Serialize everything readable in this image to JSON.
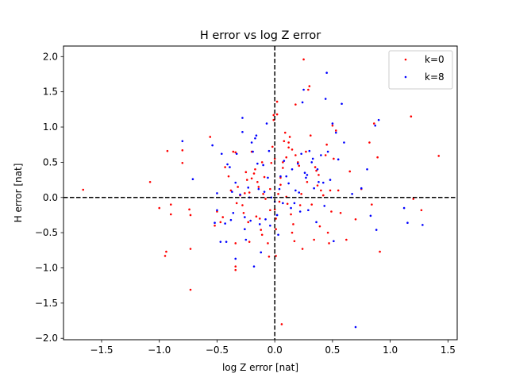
{
  "chart_data": {
    "type": "scatter",
    "title": "H error vs log Z error",
    "xlabel": "log Z error [nat]",
    "ylabel": "H error [nat]",
    "xlim": [
      -1.83,
      1.58
    ],
    "ylim": [
      -2.02,
      2.15
    ],
    "xticks": [
      -1.5,
      -1.0,
      -0.5,
      0.0,
      0.5,
      1.0,
      1.5
    ],
    "xtick_labels": [
      "−1.5",
      "−1.0",
      "−0.5",
      "0.0",
      "0.5",
      "1.0",
      "1.5"
    ],
    "yticks": [
      -2.0,
      -1.5,
      -1.0,
      -0.5,
      0.0,
      0.5,
      1.0,
      1.5,
      2.0
    ],
    "ytick_labels": [
      "−2.0",
      "−1.5",
      "−1.0",
      "−0.5",
      "0.0",
      "0.5",
      "1.0",
      "1.5",
      "2.0"
    ],
    "grid": false,
    "legend_position": "top-right",
    "reference_lines": [
      {
        "orientation": "horizontal",
        "value": 0.0,
        "style": "dashed",
        "color": "#000000"
      },
      {
        "orientation": "vertical",
        "value": 0.0,
        "style": "dashed",
        "color": "#000000"
      }
    ],
    "series": [
      {
        "name": "k=0",
        "color": "#ff0000",
        "points": [
          [
            -1.66,
            0.11
          ],
          [
            -1.08,
            0.22
          ],
          [
            -1.0,
            -0.15
          ],
          [
            -0.93,
            0.66
          ],
          [
            -0.95,
            -0.83
          ],
          [
            -0.94,
            -0.77
          ],
          [
            -0.9,
            -0.1
          ],
          [
            -0.9,
            -0.24
          ],
          [
            -0.8,
            0.49
          ],
          [
            -0.8,
            0.67
          ],
          [
            -0.74,
            -0.17
          ],
          [
            -0.73,
            -0.25
          ],
          [
            -0.73,
            -0.73
          ],
          [
            -0.73,
            -1.31
          ],
          [
            -0.56,
            0.86
          ],
          [
            -0.52,
            -0.4
          ],
          [
            -0.5,
            -0.2
          ],
          [
            -0.47,
            -0.35
          ],
          [
            -0.45,
            -0.28
          ],
          [
            -0.43,
            0.43
          ],
          [
            -0.4,
            0.3
          ],
          [
            -0.38,
            0.1
          ],
          [
            -0.36,
            0.65
          ],
          [
            -0.34,
            0.64
          ],
          [
            -0.34,
            -0.65
          ],
          [
            -0.34,
            -0.98
          ],
          [
            -0.34,
            -1.03
          ],
          [
            -0.33,
            -0.08
          ],
          [
            -0.32,
            0.15
          ],
          [
            -0.3,
            0.03
          ],
          [
            -0.28,
            -0.11
          ],
          [
            -0.27,
            -0.22
          ],
          [
            -0.26,
            0.06
          ],
          [
            -0.25,
            0.36
          ],
          [
            -0.24,
            0.25
          ],
          [
            -0.23,
            -0.35
          ],
          [
            -0.22,
            -0.63
          ],
          [
            -0.22,
            0.07
          ],
          [
            -0.2,
            0.65
          ],
          [
            -0.2,
            0.27
          ],
          [
            -0.18,
            0.34
          ],
          [
            -0.17,
            0.4
          ],
          [
            -0.16,
            -0.27
          ],
          [
            -0.15,
            0.22
          ],
          [
            -0.14,
            0.15
          ],
          [
            -0.13,
            -0.3
          ],
          [
            -0.12,
            -0.46
          ],
          [
            -0.11,
            0.5
          ],
          [
            -0.11,
            -0.53
          ],
          [
            -0.1,
            0.05
          ],
          [
            -0.09,
            0.29
          ],
          [
            -0.08,
            -0.02
          ],
          [
            -0.06,
            -0.65
          ],
          [
            -0.05,
            -0.84
          ],
          [
            -0.04,
            -0.18
          ],
          [
            -0.04,
            0.12
          ],
          [
            -0.03,
            0.49
          ],
          [
            -0.02,
            0.72
          ],
          [
            -0.01,
            1.17
          ],
          [
            -0.01,
            1.1
          ],
          [
            0.0,
            0.55
          ],
          [
            0.0,
            -0.17
          ],
          [
            0.01,
            -0.3
          ],
          [
            0.01,
            -0.45
          ],
          [
            0.01,
            -0.83
          ],
          [
            0.02,
            1.36
          ],
          [
            0.02,
            1.18
          ],
          [
            0.03,
            0.05
          ],
          [
            0.04,
            -0.06
          ],
          [
            0.05,
            0.28
          ],
          [
            0.05,
            0.18
          ],
          [
            0.06,
            -1.8
          ],
          [
            0.07,
            0.5
          ],
          [
            0.07,
            0.42
          ],
          [
            0.08,
            0.8
          ],
          [
            0.09,
            0.92
          ],
          [
            0.1,
            0.57
          ],
          [
            0.1,
            0.01
          ],
          [
            0.11,
            -0.09
          ],
          [
            0.12,
            0.78
          ],
          [
            0.12,
            0.71
          ],
          [
            0.13,
            0.86
          ],
          [
            0.14,
            -0.24
          ],
          [
            0.15,
            0.68
          ],
          [
            0.15,
            -0.5
          ],
          [
            0.16,
            -0.38
          ],
          [
            0.17,
            -0.62
          ],
          [
            0.18,
            1.32
          ],
          [
            0.18,
            0.6
          ],
          [
            0.2,
            0.5
          ],
          [
            0.21,
            0.45
          ],
          [
            0.22,
            -0.11
          ],
          [
            0.23,
            0.05
          ],
          [
            0.24,
            -0.73
          ],
          [
            0.25,
            1.96
          ],
          [
            0.27,
            0.65
          ],
          [
            0.28,
            0.22
          ],
          [
            0.29,
            1.53
          ],
          [
            0.3,
            1.58
          ],
          [
            0.31,
            0.88
          ],
          [
            0.32,
            -0.1
          ],
          [
            0.34,
            -0.6
          ],
          [
            0.35,
            0.43
          ],
          [
            0.36,
            0.38
          ],
          [
            0.37,
            0.17
          ],
          [
            0.38,
            0.32
          ],
          [
            0.39,
            -0.41
          ],
          [
            0.4,
            0.1
          ],
          [
            0.42,
            0.03
          ],
          [
            0.44,
            0.6
          ],
          [
            0.45,
            0.75
          ],
          [
            0.46,
            -0.5
          ],
          [
            0.47,
            -0.65
          ],
          [
            0.48,
            0.1
          ],
          [
            0.49,
            -0.2
          ],
          [
            0.5,
            1.02
          ],
          [
            0.51,
            0.55
          ],
          [
            0.53,
            0.95
          ],
          [
            0.55,
            0.1
          ],
          [
            0.57,
            -0.22
          ],
          [
            0.62,
            -0.6
          ],
          [
            0.65,
            0.37
          ],
          [
            0.7,
            -0.31
          ],
          [
            0.75,
            0.12
          ],
          [
            0.82,
            0.78
          ],
          [
            0.84,
            -0.1
          ],
          [
            0.86,
            1.05
          ],
          [
            0.89,
            0.57
          ],
          [
            0.91,
            -0.77
          ],
          [
            1.18,
            1.15
          ],
          [
            1.2,
            -0.02
          ],
          [
            1.27,
            -0.18
          ],
          [
            1.42,
            0.59
          ]
        ]
      },
      {
        "name": "k=8",
        "color": "#0000ff",
        "points": [
          [
            -0.8,
            0.8
          ],
          [
            -0.71,
            0.26
          ],
          [
            -0.54,
            0.74
          ],
          [
            -0.52,
            -0.36
          ],
          [
            -0.5,
            -0.18
          ],
          [
            -0.5,
            0.06
          ],
          [
            -0.47,
            -0.63
          ],
          [
            -0.46,
            0.62
          ],
          [
            -0.43,
            -0.37
          ],
          [
            -0.42,
            -0.63
          ],
          [
            -0.41,
            0.47
          ],
          [
            -0.39,
            0.43
          ],
          [
            -0.38,
            -0.32
          ],
          [
            -0.37,
            0.08
          ],
          [
            -0.36,
            -0.22
          ],
          [
            -0.34,
            0.21
          ],
          [
            -0.34,
            -0.87
          ],
          [
            -0.33,
            0.62
          ],
          [
            -0.3,
            0.04
          ],
          [
            -0.28,
            1.13
          ],
          [
            -0.28,
            0.93
          ],
          [
            -0.26,
            -0.28
          ],
          [
            -0.26,
            -0.45
          ],
          [
            -0.25,
            -0.6
          ],
          [
            -0.23,
            0.14
          ],
          [
            -0.22,
            0.0
          ],
          [
            -0.21,
            -0.33
          ],
          [
            -0.2,
            0.78
          ],
          [
            -0.19,
            0.65
          ],
          [
            -0.18,
            -0.98
          ],
          [
            -0.17,
            0.84
          ],
          [
            -0.16,
            0.88
          ],
          [
            -0.15,
            0.48
          ],
          [
            -0.14,
            0.12
          ],
          [
            -0.13,
            -0.38
          ],
          [
            -0.12,
            -0.78
          ],
          [
            -0.1,
            0.46
          ],
          [
            -0.09,
            0.08
          ],
          [
            -0.08,
            -0.31
          ],
          [
            -0.07,
            1.05
          ],
          [
            -0.06,
            0.28
          ],
          [
            -0.05,
            0.66
          ],
          [
            -0.04,
            -0.4
          ],
          [
            -0.03,
            0.0
          ],
          [
            0.0,
            -0.06
          ],
          [
            0.02,
            -0.25
          ],
          [
            0.03,
            -0.53
          ],
          [
            0.04,
            0.12
          ],
          [
            0.05,
            0.3
          ],
          [
            0.07,
            -0.08
          ],
          [
            0.08,
            0.52
          ],
          [
            0.1,
            0.3
          ],
          [
            0.12,
            0.2
          ],
          [
            0.14,
            -0.15
          ],
          [
            0.15,
            0.4
          ],
          [
            0.17,
            -0.08
          ],
          [
            0.18,
            0.1
          ],
          [
            0.2,
            0.48
          ],
          [
            0.21,
            0.07
          ],
          [
            0.22,
            -0.2
          ],
          [
            0.23,
            0.62
          ],
          [
            0.24,
            1.35
          ],
          [
            0.25,
            1.53
          ],
          [
            0.26,
            0.35
          ],
          [
            0.27,
            0.28
          ],
          [
            0.28,
            0.32
          ],
          [
            0.29,
            -0.18
          ],
          [
            0.3,
            0.66
          ],
          [
            0.32,
            0.5
          ],
          [
            0.33,
            0.55
          ],
          [
            0.34,
            0.13
          ],
          [
            0.36,
            -0.35
          ],
          [
            0.37,
            0.4
          ],
          [
            0.38,
            0.22
          ],
          [
            0.4,
            0.6
          ],
          [
            0.42,
            0.21
          ],
          [
            0.43,
            -0.12
          ],
          [
            0.44,
            1.4
          ],
          [
            0.45,
            1.77
          ],
          [
            0.46,
            0.65
          ],
          [
            0.48,
            0.25
          ],
          [
            0.5,
            1.05
          ],
          [
            0.51,
            -0.62
          ],
          [
            0.53,
            0.92
          ],
          [
            0.55,
            0.54
          ],
          [
            0.58,
            1.33
          ],
          [
            0.6,
            0.78
          ],
          [
            0.67,
            0.05
          ],
          [
            0.7,
            -1.84
          ],
          [
            0.75,
            0.13
          ],
          [
            0.8,
            0.4
          ],
          [
            0.83,
            -0.26
          ],
          [
            0.87,
            1.02
          ],
          [
            0.88,
            -0.46
          ],
          [
            0.9,
            1.1
          ],
          [
            1.12,
            -0.15
          ],
          [
            1.15,
            -0.36
          ],
          [
            1.28,
            -0.39
          ]
        ]
      }
    ]
  }
}
